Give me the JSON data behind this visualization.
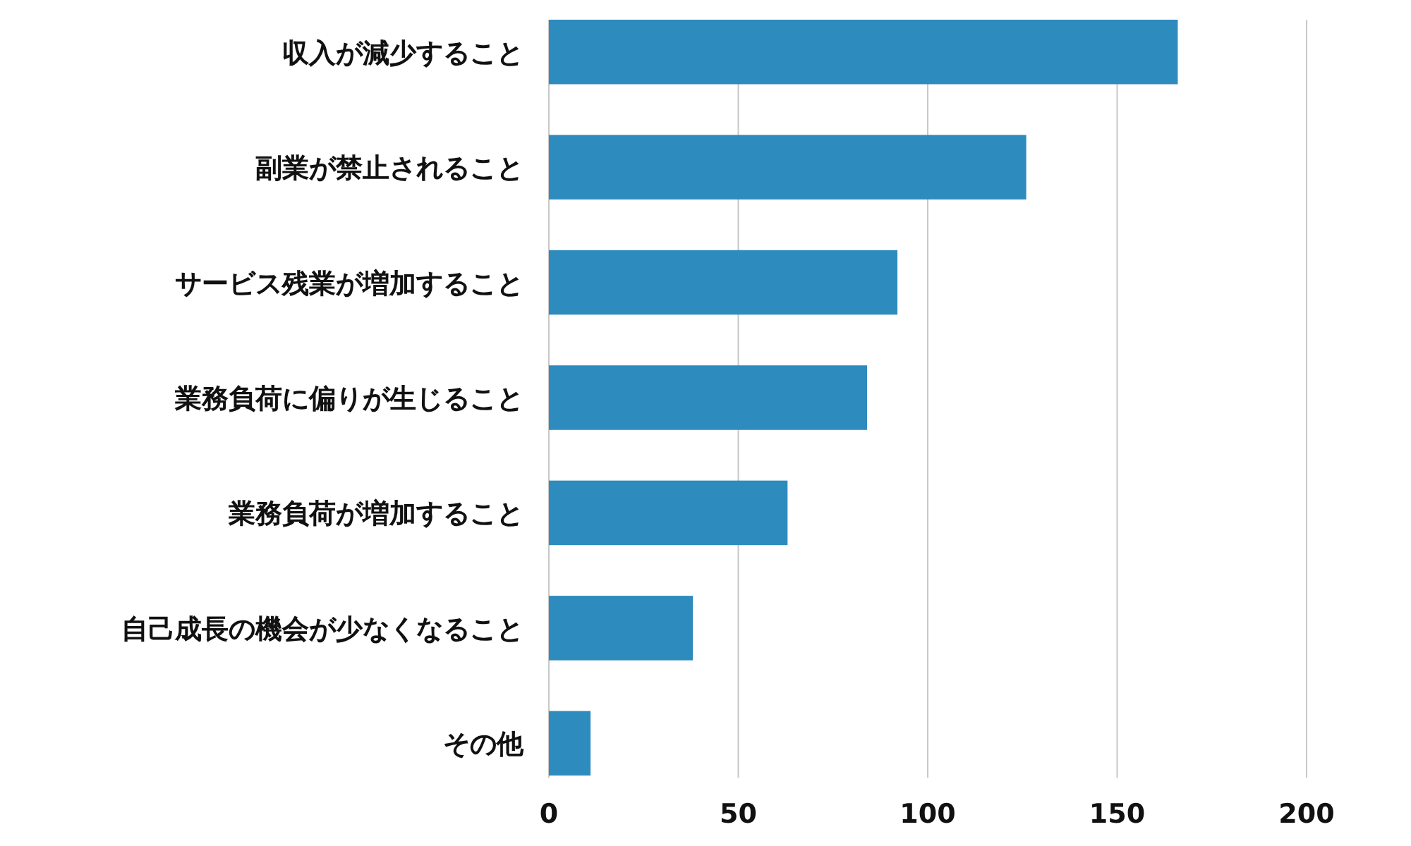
{
  "chart_data": {
    "type": "bar",
    "orientation": "horizontal",
    "categories": [
      "収入が減少すること",
      "副業が禁止されること",
      "サービス残業が増加すること",
      "業務負荷に偏りが生じること",
      "業務負荷が増加すること",
      "自己成長の機会が少なくなること",
      "その他"
    ],
    "values": [
      166,
      126,
      92,
      84,
      63,
      38,
      11
    ],
    "color": "#2e8bbd",
    "xlim": [
      0,
      200
    ],
    "xticks": [
      0,
      50,
      100,
      150,
      200
    ],
    "grid": "x"
  }
}
